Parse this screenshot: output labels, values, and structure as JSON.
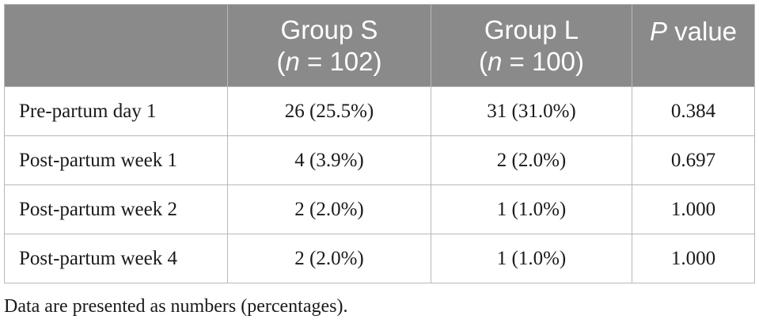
{
  "table": {
    "header": {
      "empty_label": "",
      "group_s": {
        "name": "Group S",
        "n_prefix": "(",
        "n_var": "n",
        "n_value": " = 102)"
      },
      "group_l": {
        "name": "Group L",
        "n_prefix": "(",
        "n_var": "n",
        "n_value": " = 100)"
      },
      "p_value": {
        "var": "P",
        "rest": " value"
      }
    },
    "rows": [
      {
        "label": "Pre-partum day 1",
        "group_s": "26 (25.5%)",
        "group_l": "31 (31.0%)",
        "p": "0.384"
      },
      {
        "label": "Post-partum week 1",
        "group_s": "4 (3.9%)",
        "group_l": "2 (2.0%)",
        "p": "0.697"
      },
      {
        "label": "Post-partum week 2",
        "group_s": "2 (2.0%)",
        "group_l": "1 (1.0%)",
        "p": "1.000"
      },
      {
        "label": "Post-partum week 4",
        "group_s": "2 (2.0%)",
        "group_l": "1 (1.0%)",
        "p": "1.000"
      }
    ]
  },
  "footnote": "Data are presented as numbers (percentages).",
  "colors": {
    "header_bg": "#8a8a8a",
    "header_text": "#ffffff",
    "border": "#b8b8b8",
    "body_text": "#1a1a1a"
  }
}
